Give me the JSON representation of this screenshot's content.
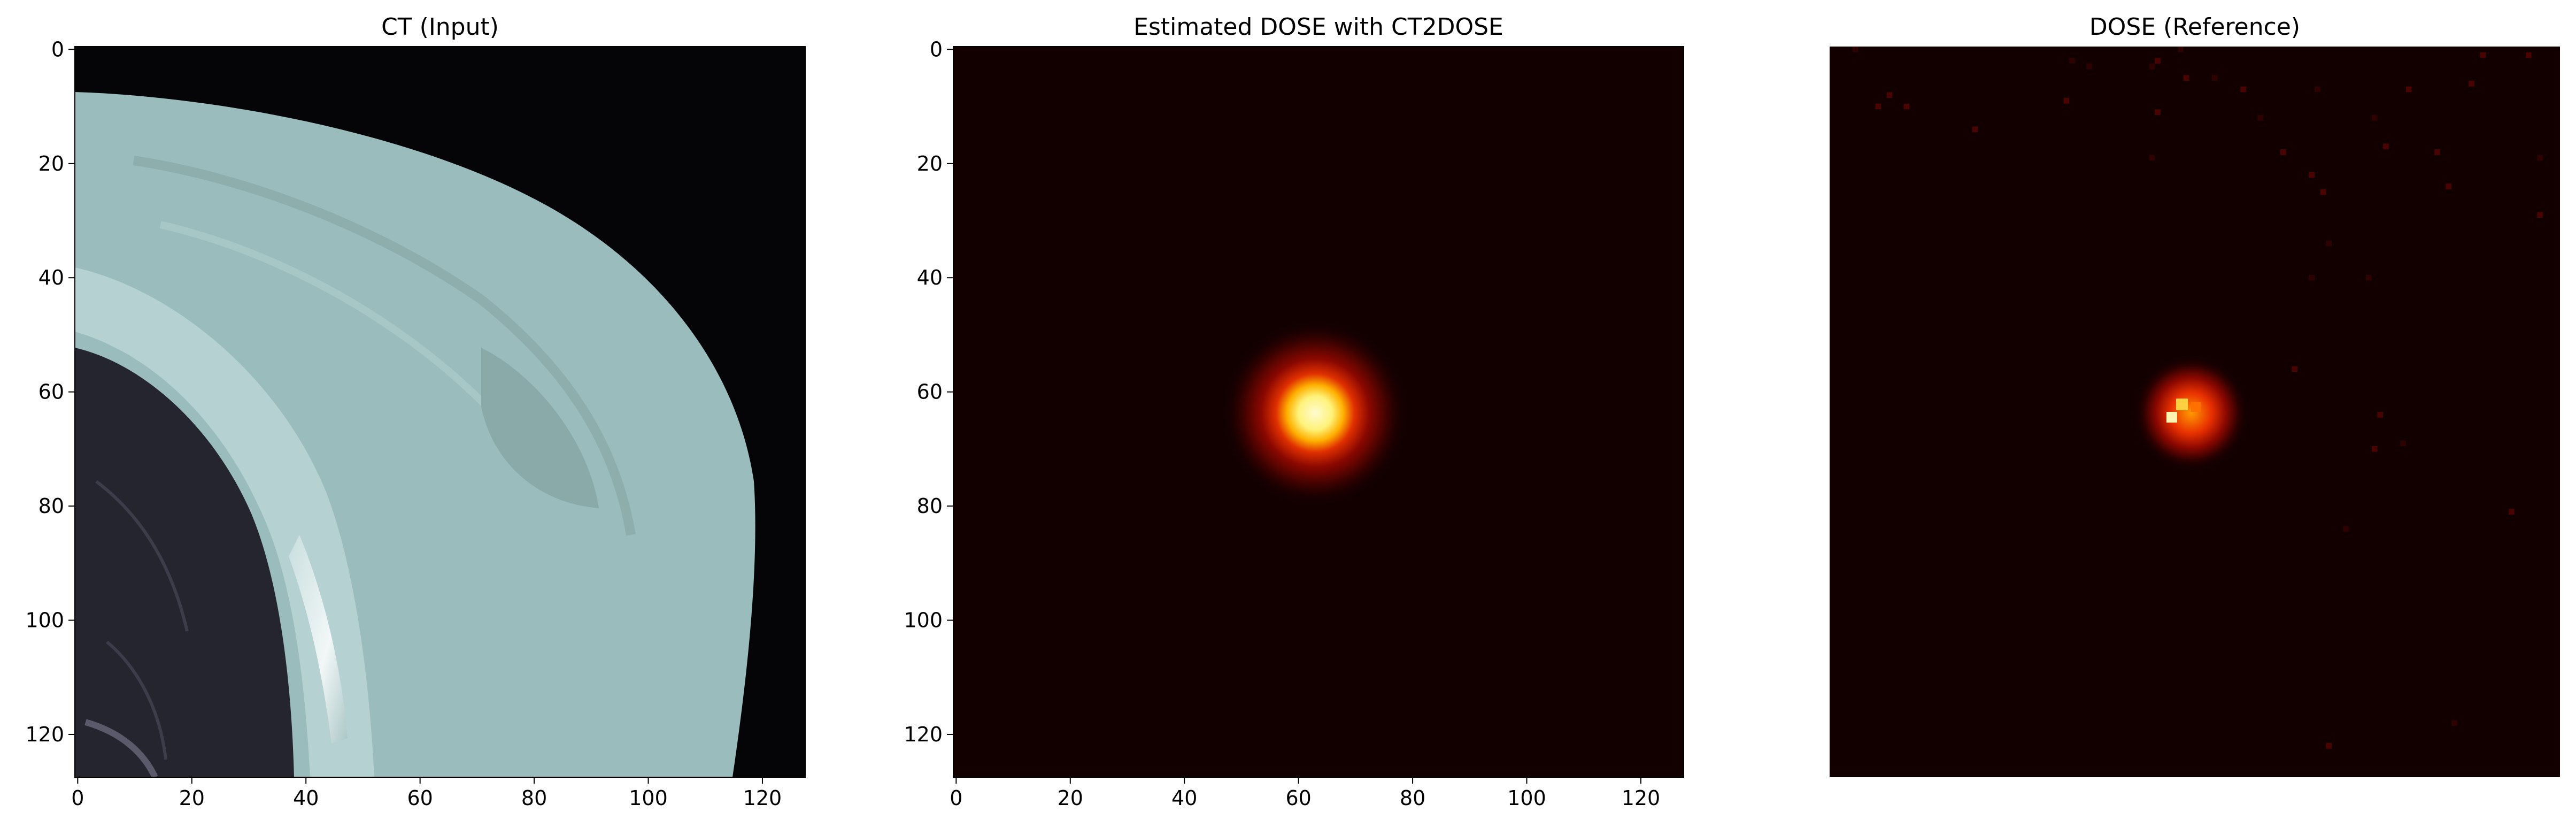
{
  "panels": [
    {
      "title": "CT (Input)",
      "x_ticks": [
        "0",
        "20",
        "40",
        "60",
        "80",
        "100",
        "120"
      ],
      "y_ticks": [
        "0",
        "20",
        "40",
        "60",
        "80",
        "100",
        "120"
      ],
      "colormap": "bone",
      "show_axes": true
    },
    {
      "title": "Estimated DOSE with CT2DOSE",
      "x_ticks": [
        "0",
        "20",
        "40",
        "60",
        "80",
        "100",
        "120"
      ],
      "y_ticks": [
        "0",
        "20",
        "40",
        "60",
        "80",
        "100",
        "120"
      ],
      "colormap": "hot",
      "show_axes": true
    },
    {
      "title": "DOSE (Reference)",
      "x_ticks": [],
      "y_ticks": [],
      "colormap": "hot",
      "show_axes": false
    }
  ],
  "image_grid": {
    "pixels": 128
  },
  "colors": {
    "ct_background": "#050508",
    "ct_tissue": "#9bbcbc",
    "ct_lung": "#25252f",
    "dose_background": "#120000",
    "dose_core": "#fffbd0"
  },
  "dose_hotspot": {
    "center_x": 63,
    "center_y": 63
  }
}
